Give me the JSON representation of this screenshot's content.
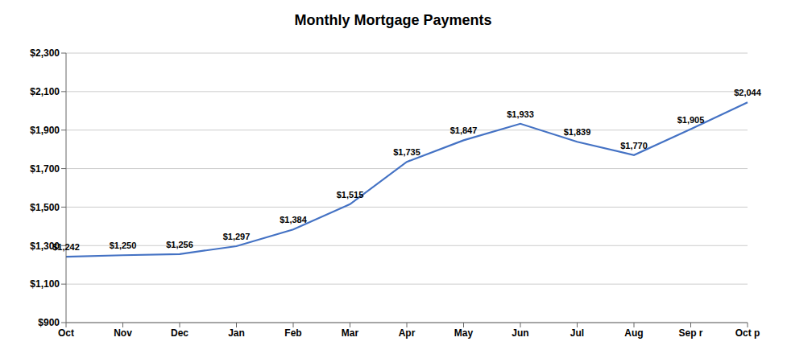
{
  "chart_data": {
    "type": "line",
    "title": "Monthly Mortgage Payments",
    "categories": [
      "Oct",
      "Nov",
      "Dec",
      "Jan",
      "Feb",
      "Mar",
      "Apr",
      "May",
      "Jun",
      "Jul",
      "Aug",
      "Sep r",
      "Oct p"
    ],
    "values": [
      1242,
      1250,
      1256,
      1297,
      1384,
      1515,
      1735,
      1847,
      1933,
      1839,
      1770,
      1905,
      2044
    ],
    "value_labels": [
      "$1,242",
      "$1,250",
      "$1,256",
      "$1,297",
      "$1,384",
      "$1,515",
      "$1,735",
      "$1,847",
      "$1,933",
      "$1,839",
      "$1,770",
      "$1,905",
      "$2,044"
    ],
    "data_labels": true,
    "color": "#4472C4",
    "ylim": [
      900,
      2300
    ],
    "yticks": [
      {
        "value": 900,
        "label": "$900"
      },
      {
        "value": 1100,
        "label": "$1,100"
      },
      {
        "value": 1300,
        "label": "$1,300"
      },
      {
        "value": 1500,
        "label": "$1,500"
      },
      {
        "value": 1700,
        "label": "$1,700"
      },
      {
        "value": 1900,
        "label": "$1,900"
      },
      {
        "value": 2100,
        "label": "$2,100"
      },
      {
        "value": 2300,
        "label": "$2,300"
      }
    ],
    "grid": true
  }
}
